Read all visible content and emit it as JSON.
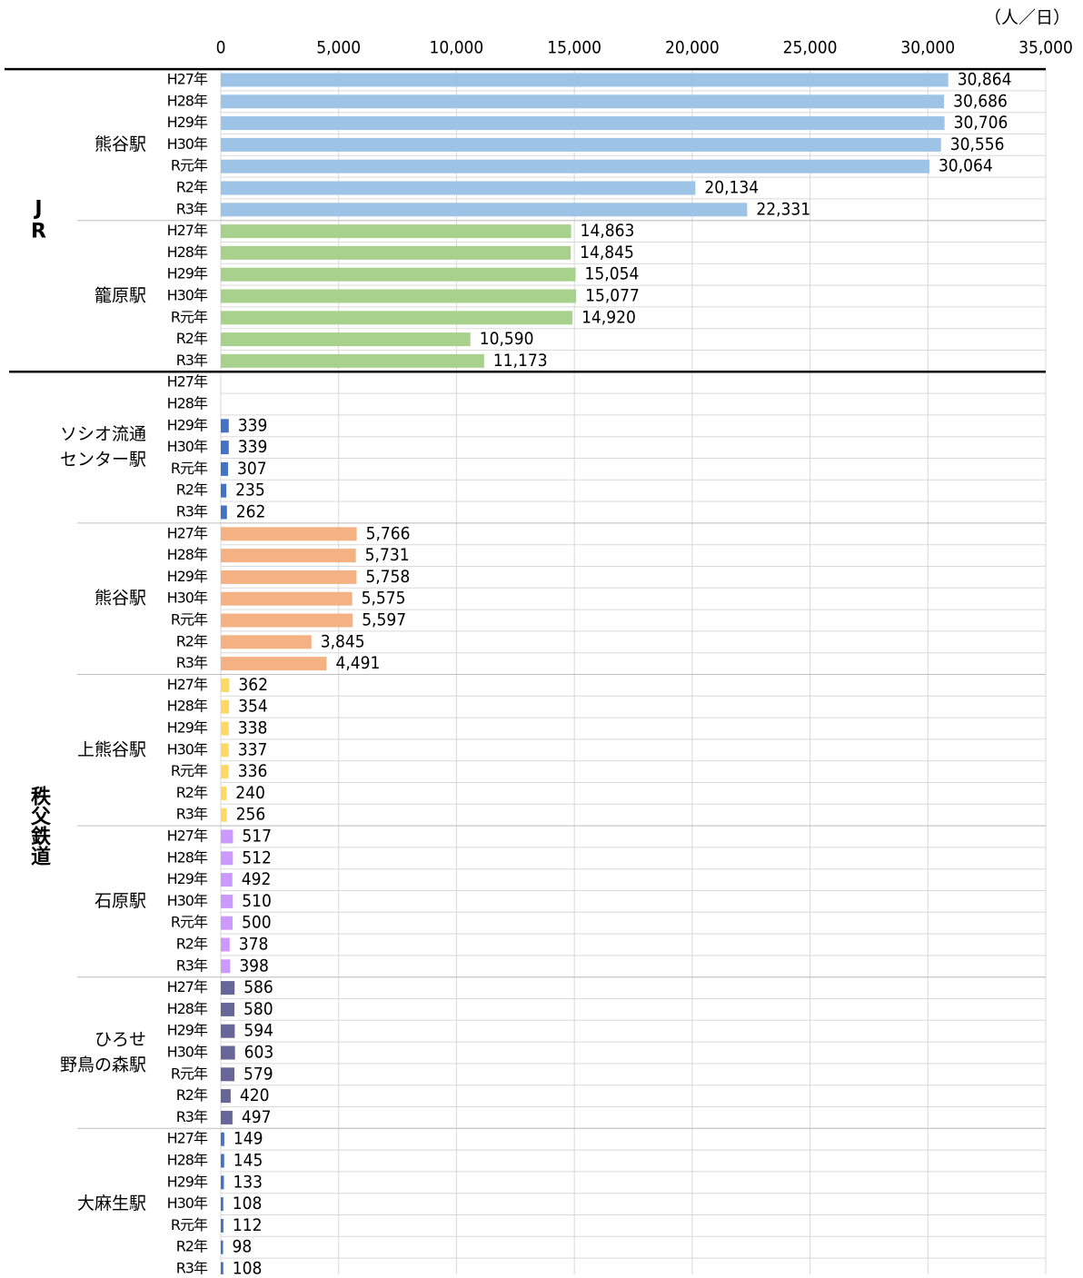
{
  "chart_data": {
    "type": "bar",
    "unit": "（人／日）",
    "xlim": [
      0,
      35000
    ],
    "xticks": [
      0,
      {
        "value": 5000,
        "label": "5,000"
      },
      {
        "value": 10000,
        "label": "10,000"
      },
      {
        "value": 15000,
        "label": "15,000"
      },
      {
        "value": 20000,
        "label": "20,000"
      },
      {
        "value": 25000,
        "label": "25,000"
      },
      {
        "value": 30000,
        "label": "30,000"
      },
      {
        "value": 35000,
        "label": "35,000"
      }
    ],
    "grid": true,
    "years": [
      "H27年",
      "H28年",
      "H29年",
      "H30年",
      "R元年",
      "R2年",
      "R3年"
    ],
    "groups": [
      {
        "name": "JR",
        "stations": [
          {
            "name": [
              "熊谷駅"
            ],
            "color": "#9dc3e6",
            "values": [
              30864,
              30686,
              30706,
              30556,
              30064,
              20134,
              22331
            ],
            "value_labels": [
              "30,864",
              "30,686",
              "30,706",
              "30,556",
              "30,064",
              "20,134",
              "22,331"
            ]
          },
          {
            "name": [
              "籠原駅"
            ],
            "color": "#a9d18e",
            "values": [
              14863,
              14845,
              15054,
              15077,
              14920,
              10590,
              11173
            ],
            "value_labels": [
              "14,863",
              "14,845",
              "15,054",
              "15,077",
              "14,920",
              "10,590",
              "11,173"
            ]
          }
        ]
      },
      {
        "name": "秩父鉄道",
        "stations": [
          {
            "name": [
              "ソシオ流通",
              "センター駅"
            ],
            "color": "#4472c4",
            "values": [
              null,
              null,
              339,
              339,
              307,
              235,
              262
            ]
          },
          {
            "name": [
              "熊谷駅"
            ],
            "color": "#f4b183",
            "values": [
              5766,
              5731,
              5758,
              5575,
              5597,
              3845,
              4491
            ],
            "value_labels": [
              "5,766",
              "5,731",
              "5,758",
              "5,575",
              "5,597",
              "3,845",
              "4,491"
            ]
          },
          {
            "name": [
              "上熊谷駅"
            ],
            "color": "#ffd966",
            "values": [
              362,
              354,
              338,
              337,
              336,
              240,
              256
            ]
          },
          {
            "name": [
              "石原駅"
            ],
            "color": "#cc99ff",
            "values": [
              517,
              512,
              492,
              510,
              500,
              378,
              398
            ]
          },
          {
            "name": [
              "ひろせ",
              "野鳥の森駅"
            ],
            "color": "#666699",
            "values": [
              586,
              580,
              594,
              603,
              579,
              420,
              497
            ]
          },
          {
            "name": [
              "大麻生駅"
            ],
            "color": "#4472c4",
            "values": [
              149,
              145,
              133,
              108,
              112,
              98,
              108
            ]
          }
        ]
      }
    ]
  }
}
